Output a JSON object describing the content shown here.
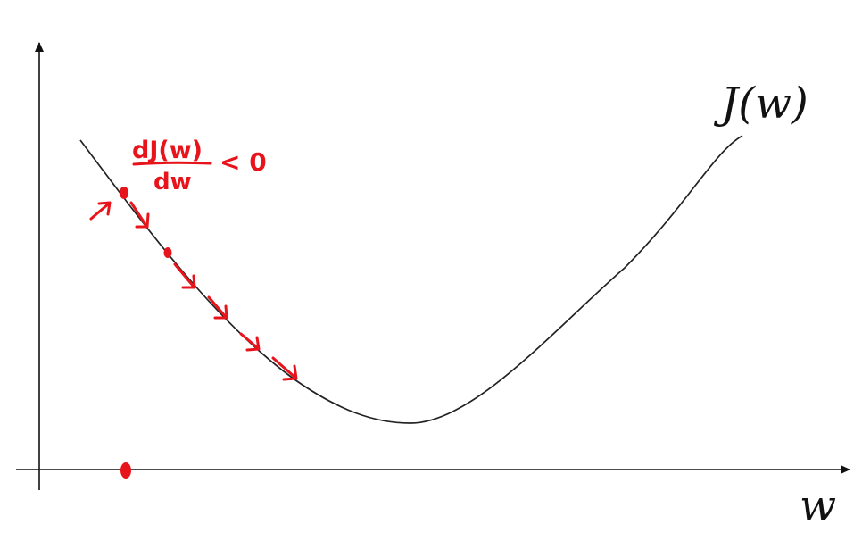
{
  "diagram": {
    "curve_label": "J(w)",
    "x_axis_label": "w",
    "derivative_numerator": "dJ(w)",
    "derivative_denominator": "dw",
    "derivative_relation": "< 0",
    "ink_color": "#e8141b",
    "curve_color": "#222222",
    "axis_color": "#111111"
  }
}
